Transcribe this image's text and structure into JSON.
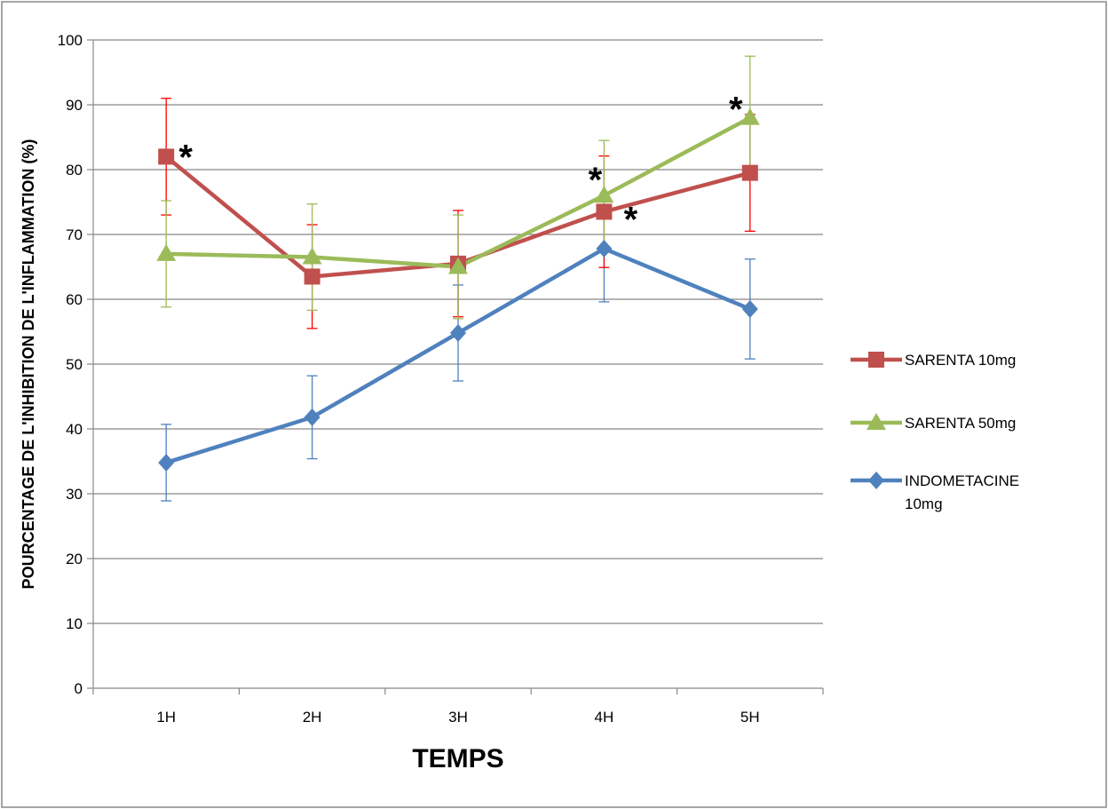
{
  "chart_data": {
    "type": "line",
    "title": "",
    "xlabel": "TEMPS",
    "ylabel": "POURCENTAGE DE L'INHIBITION DE L'INFLAMMATION (%)",
    "categories": [
      "1H",
      "2H",
      "3H",
      "4H",
      "5H"
    ],
    "ylim": [
      0,
      100
    ],
    "yticks": [
      0,
      10,
      20,
      30,
      40,
      50,
      60,
      70,
      80,
      90,
      100
    ],
    "grid": true,
    "legend_position": "right",
    "series": [
      {
        "name": "SARENTA 10mg",
        "color": "#c0504d",
        "error_color": "#ff0000",
        "marker": "square",
        "values": [
          82,
          63.5,
          65.5,
          73.5,
          79.5
        ],
        "errors": [
          9,
          8,
          8.2,
          8.6,
          9
        ]
      },
      {
        "name": "SARENTA 50mg",
        "color": "#9bbb59",
        "error_color": "#9bbb59",
        "marker": "triangle",
        "values": [
          67,
          66.5,
          65,
          76,
          88
        ],
        "errors": [
          8.2,
          8.2,
          8,
          8.5,
          9.5
        ]
      },
      {
        "name": "INDOMETACINE 10mg",
        "name_lines": [
          "INDOMETACINE",
          "10mg"
        ],
        "color": "#4f81bd",
        "error_color": "#4f81bd",
        "marker": "diamond",
        "values": [
          34.8,
          41.8,
          54.8,
          67.8,
          58.5
        ],
        "errors": [
          5.9,
          6.4,
          7.4,
          8.2,
          7.7
        ]
      }
    ],
    "annotations": [
      {
        "text": "*",
        "category": "1H",
        "y": 82,
        "series": "SARENTA 10mg"
      },
      {
        "text": "*",
        "category": "4H",
        "y": 76,
        "series": "SARENTA 50mg"
      },
      {
        "text": "*",
        "category": "4H",
        "y": 73.5,
        "series": "SARENTA 10mg"
      },
      {
        "text": "*",
        "category": "5H",
        "y": 88,
        "series": "SARENTA 50mg"
      }
    ]
  }
}
